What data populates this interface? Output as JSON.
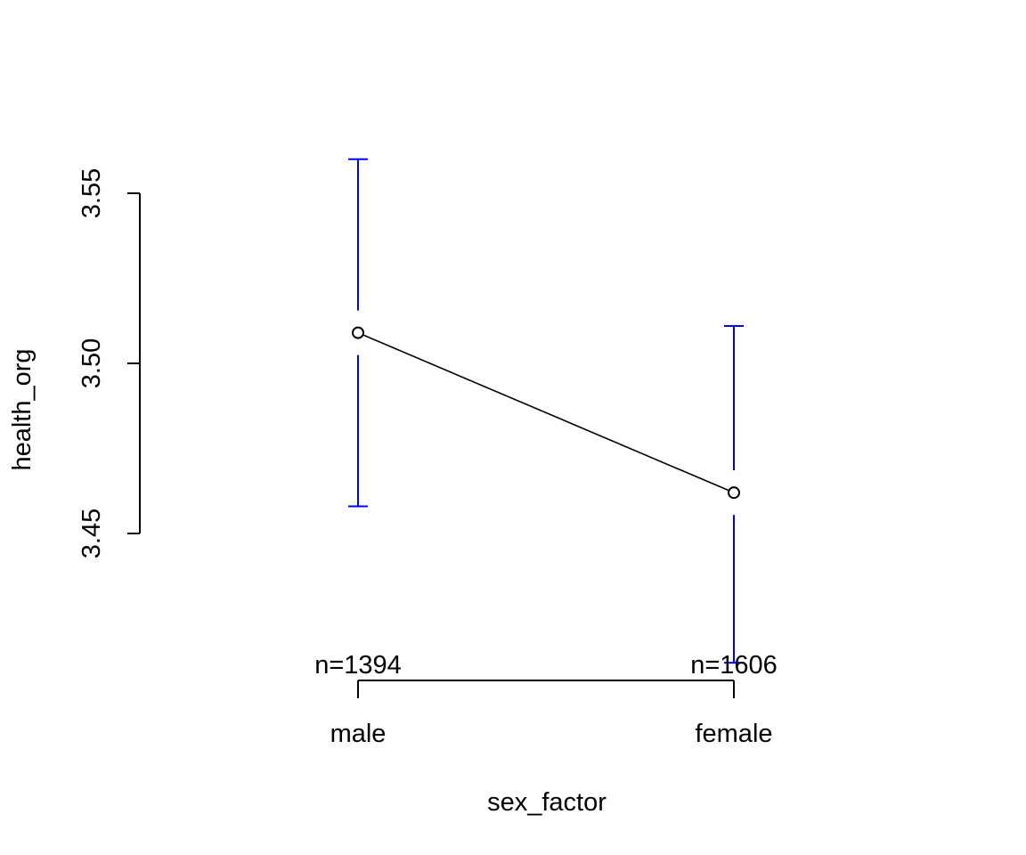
{
  "chart_data": {
    "type": "line",
    "xlabel": "sex_factor",
    "ylabel": "health_org",
    "categories": [
      "male",
      "female"
    ],
    "counts": [
      "n=1394",
      "n=1606"
    ],
    "yticks": [
      3.45,
      3.5,
      3.55
    ],
    "ytick_labels": [
      "3.45",
      "3.50",
      "3.55"
    ],
    "series": [
      {
        "values": [
          3.509,
          3.462
        ],
        "ci_lower": [
          3.458,
          3.412
        ],
        "ci_upper": [
          3.56,
          3.511
        ]
      }
    ],
    "colors": {
      "line": "#000000",
      "error_bars": "#0000FF",
      "axis": "#000000"
    },
    "grid": false,
    "legend": "none"
  }
}
